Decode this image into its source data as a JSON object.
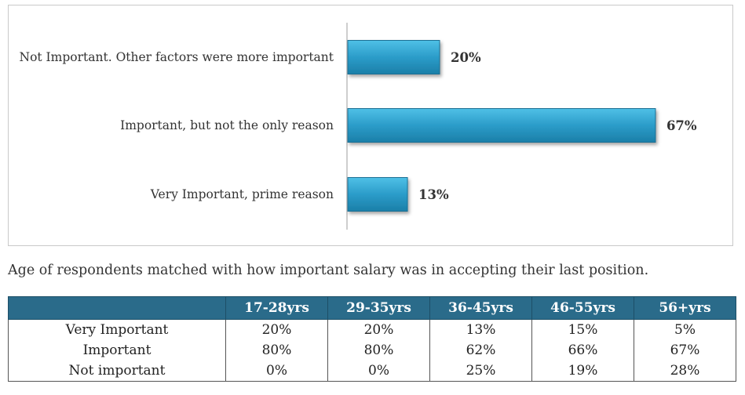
{
  "chart_data": {
    "type": "bar",
    "orientation": "horizontal",
    "categories": [
      "Not Important. Other factors were more important",
      "Important, but not the only reason",
      "Very Important, prime reason"
    ],
    "values": [
      20,
      67,
      13
    ],
    "value_labels": [
      "20%",
      "67%",
      "13%"
    ],
    "xlim": [
      0,
      100
    ],
    "grid": false,
    "bar_color": "#2b9cc9"
  },
  "caption": "Age of respondents matched with how important salary was in accepting their last position.",
  "table": {
    "header_color": "#2a6b8a",
    "columns": [
      "",
      "17-28yrs",
      "29-35yrs",
      "36-45yrs",
      "46-55yrs",
      "56+yrs"
    ],
    "rows": [
      [
        "Very Important",
        "20%",
        "20%",
        "13%",
        "15%",
        "5%"
      ],
      [
        "Important",
        "80%",
        "80%",
        "62%",
        "66%",
        "67%"
      ],
      [
        "Not important",
        "0%",
        "0%",
        "25%",
        "19%",
        "28%"
      ]
    ]
  }
}
